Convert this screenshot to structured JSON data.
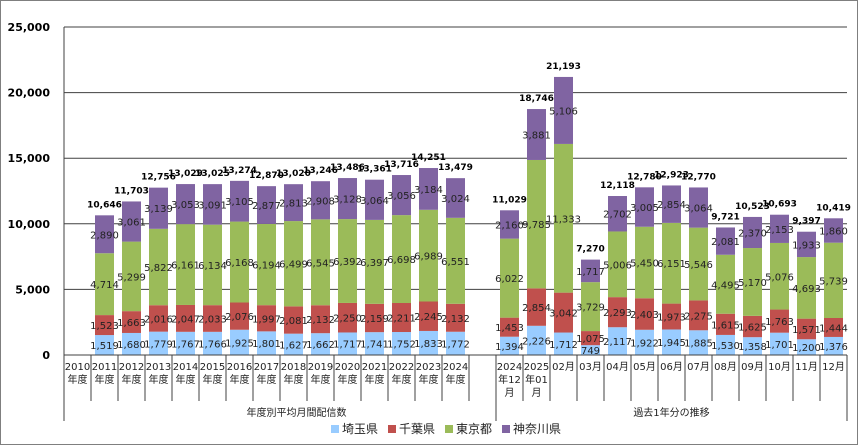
{
  "chart_data": {
    "type": "bar",
    "stacked": true,
    "title": "",
    "xlabel": "",
    "ylabel": "",
    "ylim": [
      0,
      25000
    ],
    "yticks": [
      "0",
      "5,000",
      "10,000",
      "15,000",
      "20,000",
      "25,000"
    ],
    "grid": true,
    "legend_position": "bottom",
    "groups": [
      {
        "label": "年度別平均月間配信数",
        "categories": [
          [
            "2010",
            "年度"
          ],
          [
            "2011",
            "年度"
          ],
          [
            "2012",
            "年度"
          ],
          [
            "2013",
            "年度"
          ],
          [
            "2014",
            "年度"
          ],
          [
            "2015",
            "年度"
          ],
          [
            "2016",
            "年度"
          ],
          [
            "2017",
            "年度"
          ],
          [
            "2018",
            "年度"
          ],
          [
            "2019",
            "年度"
          ],
          [
            "2020",
            "年度"
          ],
          [
            "2021",
            "年度"
          ],
          [
            "2022",
            "年度"
          ],
          [
            "2023",
            "年度"
          ],
          [
            "2024",
            "年度"
          ]
        ]
      },
      {
        "label": "過去1年分の推移",
        "categories": [
          [
            "2024",
            "年12",
            "月"
          ],
          [
            "2025",
            "年01",
            "月"
          ],
          [
            "02月"
          ],
          [
            "03月"
          ],
          [
            "04月"
          ],
          [
            "05月"
          ],
          [
            "06月"
          ],
          [
            "07月"
          ],
          [
            "08月"
          ],
          [
            "09月"
          ],
          [
            "10月"
          ],
          [
            "11月"
          ],
          [
            "12月"
          ]
        ]
      }
    ],
    "series": [
      {
        "name": "埼玉県",
        "color": "#99CCFF",
        "values": [
          null,
          1519,
          1680,
          1779,
          1767,
          1766,
          1925,
          1801,
          1627,
          1662,
          1717,
          1741,
          1752,
          1833,
          1772,
          1394,
          2226,
          1712,
          749,
          2117,
          1922,
          1945,
          1885,
          1530,
          1358,
          1701,
          1200,
          1376
        ]
      },
      {
        "name": "千葉県",
        "color": "#C0504D",
        "values": [
          null,
          1523,
          1663,
          2016,
          2047,
          2033,
          2076,
          1997,
          2081,
          2132,
          2250,
          2159,
          2211,
          2245,
          2132,
          1453,
          2854,
          3042,
          1075,
          2293,
          2403,
          1973,
          2275,
          1615,
          1625,
          1763,
          1571,
          1444
        ]
      },
      {
        "name": "東京都",
        "color": "#9BBB59",
        "values": [
          null,
          4714,
          5299,
          5822,
          6161,
          6134,
          6168,
          6194,
          6499,
          6545,
          6392,
          6397,
          6698,
          6989,
          6551,
          6022,
          9785,
          11333,
          3729,
          5006,
          5450,
          6151,
          5546,
          4495,
          5170,
          5076,
          4693,
          5739
        ]
      },
      {
        "name": "神奈川県",
        "color": "#8064A2",
        "values": [
          null,
          2890,
          3061,
          3139,
          3053,
          3091,
          3105,
          2877,
          2813,
          2908,
          3128,
          3064,
          3056,
          3184,
          3024,
          2160,
          3881,
          5106,
          1717,
          2702,
          3005,
          2854,
          3064,
          2081,
          2370,
          2153,
          1933,
          1860
        ]
      }
    ],
    "totals": [
      null,
      10646,
      11703,
      12756,
      13029,
      13025,
      13274,
      12870,
      13020,
      13246,
      13486,
      13361,
      13716,
      14251,
      13479,
      11029,
      18746,
      21193,
      7270,
      12118,
      12780,
      12923,
      12770,
      9721,
      10523,
      10693,
      9397,
      10419
    ]
  }
}
